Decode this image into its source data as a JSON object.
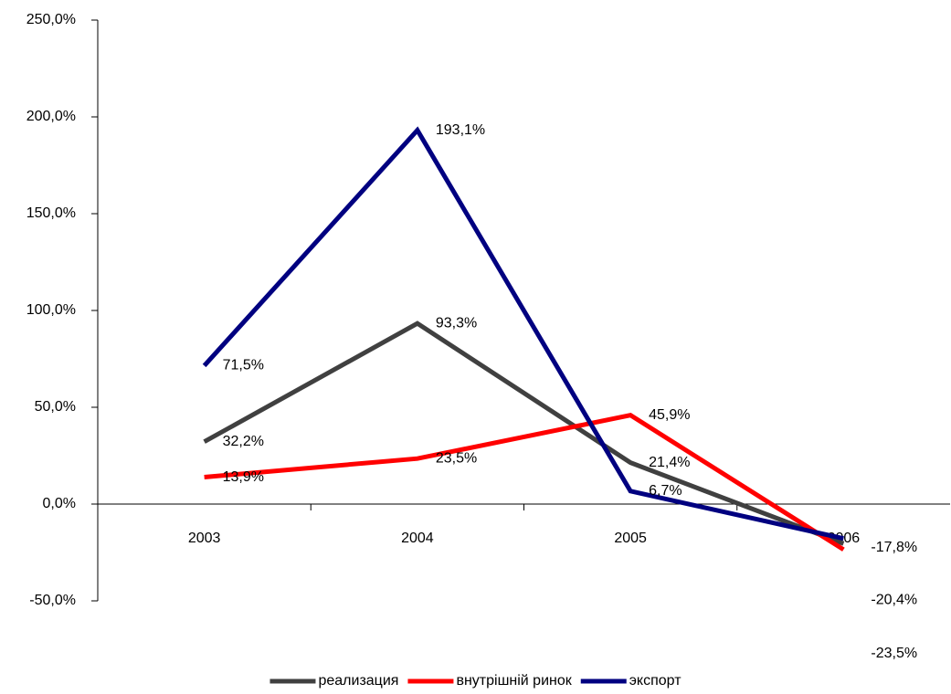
{
  "chart_data": {
    "type": "line",
    "categories": [
      "2003",
      "2004",
      "2005",
      "2006"
    ],
    "series": [
      {
        "name": "реализация",
        "color": "#404040",
        "values": [
          32.2,
          93.3,
          21.4,
          -20.4
        ],
        "value_labels": [
          "32,2%",
          "93,3%",
          "21,4%",
          "-20,4%"
        ]
      },
      {
        "name": "внутрішній ринок",
        "color": "#ff0000",
        "values": [
          13.9,
          23.5,
          45.9,
          -23.5
        ],
        "value_labels": [
          "13,9%",
          "23,5%",
          "45,9%",
          "-23,5%"
        ]
      },
      {
        "name": "экспорт",
        "color": "#000080",
        "values": [
          71.5,
          193.1,
          6.7,
          -17.8
        ],
        "value_labels": [
          "71,5%",
          "193,1%",
          "6,7%",
          "-17,8%"
        ]
      }
    ],
    "ylim": [
      -50,
      250
    ],
    "yticks": [
      {
        "value": -50,
        "label": "-50,0%"
      },
      {
        "value": 0,
        "label": "0,0%"
      },
      {
        "value": 50,
        "label": "50,0%"
      },
      {
        "value": 100,
        "label": "100,0%"
      },
      {
        "value": 150,
        "label": "150,0%"
      },
      {
        "value": 200,
        "label": "200,0%"
      },
      {
        "value": 250,
        "label": "250,0%"
      }
    ],
    "grid": false,
    "legend": "bottom"
  }
}
